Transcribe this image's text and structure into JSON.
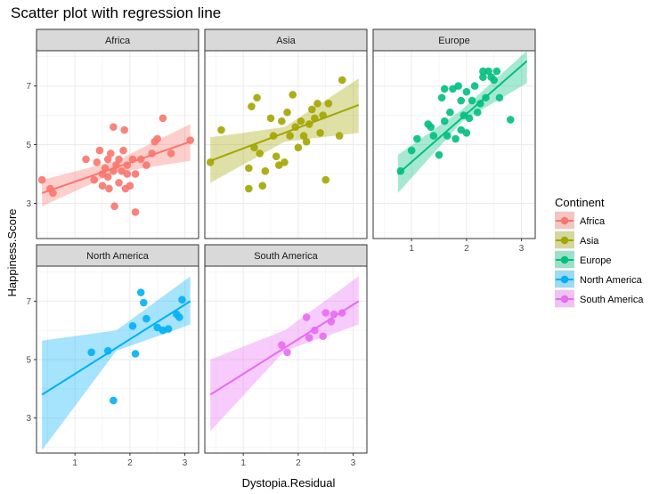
{
  "chart_data": {
    "type": "scatter",
    "title": "Scatter plot with regression line",
    "xlabel": "Dystopia.Residual",
    "ylabel": "Happiness.Score",
    "xlim": [
      0.3,
      3.25
    ],
    "ylim": [
      1.8,
      8.2
    ],
    "x_ticks": [
      1,
      2,
      3
    ],
    "y_ticks": [
      3,
      5,
      7
    ],
    "grid": true,
    "legend": {
      "title": "Continent",
      "position": "right"
    },
    "panels": [
      {
        "name": "Africa",
        "color": "#F8766D",
        "regression": {
          "x": [
            0.4,
            3.1
          ],
          "y": [
            3.35,
            5.1
          ],
          "ci_low_left": 2.9,
          "ci_high_left": 3.8,
          "ci_low_mid": 4.05,
          "ci_high_mid": 4.45,
          "ci_low_right": 4.45,
          "ci_high_right": 5.7
        },
        "points": [
          [
            0.4,
            3.8
          ],
          [
            0.55,
            3.5
          ],
          [
            0.6,
            3.35
          ],
          [
            1.2,
            4.5
          ],
          [
            1.35,
            3.8
          ],
          [
            1.4,
            4.4
          ],
          [
            1.45,
            4.8
          ],
          [
            1.5,
            3.6
          ],
          [
            1.5,
            4.0
          ],
          [
            1.55,
            4.2
          ],
          [
            1.6,
            3.9
          ],
          [
            1.6,
            4.5
          ],
          [
            1.62,
            3.5
          ],
          [
            1.65,
            4.7
          ],
          [
            1.7,
            5.6
          ],
          [
            1.7,
            4.1
          ],
          [
            1.72,
            2.9
          ],
          [
            1.75,
            4.3
          ],
          [
            1.8,
            3.7
          ],
          [
            1.8,
            4.5
          ],
          [
            1.85,
            4.1
          ],
          [
            1.88,
            4.8
          ],
          [
            1.9,
            5.5
          ],
          [
            1.92,
            3.5
          ],
          [
            1.95,
            4.0
          ],
          [
            1.95,
            4.3
          ],
          [
            2.0,
            3.6
          ],
          [
            2.05,
            4.5
          ],
          [
            2.1,
            2.7
          ],
          [
            2.1,
            4.0
          ],
          [
            2.2,
            4.5
          ],
          [
            2.3,
            4.3
          ],
          [
            2.4,
            4.7
          ],
          [
            2.45,
            5.1
          ],
          [
            2.5,
            5.2
          ],
          [
            2.6,
            5.9
          ],
          [
            2.75,
            4.7
          ],
          [
            3.1,
            5.15
          ]
        ]
      },
      {
        "name": "Asia",
        "color": "#A3A500",
        "regression": {
          "x": [
            0.4,
            3.1
          ],
          "y": [
            4.45,
            6.35
          ],
          "ci_low_left": 3.7,
          "ci_high_left": 5.25,
          "ci_low_mid": 5.1,
          "ci_high_mid": 5.6,
          "ci_low_right": 5.4,
          "ci_high_right": 7.25
        },
        "points": [
          [
            0.4,
            4.4
          ],
          [
            0.6,
            5.5
          ],
          [
            1.1,
            4.2
          ],
          [
            1.1,
            3.5
          ],
          [
            1.15,
            6.3
          ],
          [
            1.2,
            4.9
          ],
          [
            1.25,
            6.6
          ],
          [
            1.3,
            4.7
          ],
          [
            1.35,
            3.6
          ],
          [
            1.4,
            4.1
          ],
          [
            1.5,
            5.9
          ],
          [
            1.55,
            5.3
          ],
          [
            1.6,
            4.6
          ],
          [
            1.65,
            4.3
          ],
          [
            1.7,
            5.8
          ],
          [
            1.75,
            4.4
          ],
          [
            1.8,
            6.1
          ],
          [
            1.85,
            5.3
          ],
          [
            1.9,
            6.7
          ],
          [
            1.95,
            5.6
          ],
          [
            2.0,
            4.9
          ],
          [
            2.05,
            5.8
          ],
          [
            2.1,
            5.3
          ],
          [
            2.15,
            5.1
          ],
          [
            2.2,
            5.7
          ],
          [
            2.25,
            6.2
          ],
          [
            2.3,
            5.9
          ],
          [
            2.35,
            6.4
          ],
          [
            2.4,
            5.4
          ],
          [
            2.45,
            6.0
          ],
          [
            2.5,
            3.8
          ],
          [
            2.55,
            6.4
          ],
          [
            2.75,
            5.3
          ],
          [
            2.8,
            7.2
          ]
        ]
      },
      {
        "name": "Europe",
        "color": "#00BF7D",
        "regression": {
          "x": [
            0.75,
            3.1
          ],
          "y": [
            4.0,
            7.85
          ],
          "ci_low_left": 3.35,
          "ci_high_left": 4.65,
          "ci_low_mid": 5.8,
          "ci_high_mid": 6.2,
          "ci_low_right": 7.1,
          "ci_high_right": 8.5
        },
        "points": [
          [
            0.8,
            4.1
          ],
          [
            1.0,
            4.8
          ],
          [
            1.1,
            5.2
          ],
          [
            1.3,
            5.7
          ],
          [
            1.35,
            5.6
          ],
          [
            1.4,
            5.3
          ],
          [
            1.5,
            4.65
          ],
          [
            1.55,
            6.6
          ],
          [
            1.6,
            5.8
          ],
          [
            1.6,
            6.9
          ],
          [
            1.65,
            5.3
          ],
          [
            1.7,
            6.1
          ],
          [
            1.75,
            6.9
          ],
          [
            1.8,
            5.2
          ],
          [
            1.85,
            7.0
          ],
          [
            1.9,
            5.5
          ],
          [
            1.9,
            6.5
          ],
          [
            1.95,
            6.0
          ],
          [
            2.0,
            5.4
          ],
          [
            2.0,
            6.8
          ],
          [
            2.05,
            5.9
          ],
          [
            2.1,
            6.5
          ],
          [
            2.15,
            7.0
          ],
          [
            2.2,
            6.1
          ],
          [
            2.25,
            6.4
          ],
          [
            2.3,
            7.3
          ],
          [
            2.3,
            7.5
          ],
          [
            2.35,
            6.6
          ],
          [
            2.4,
            7.5
          ],
          [
            2.45,
            7.3
          ],
          [
            2.5,
            7.2
          ],
          [
            2.55,
            7.5
          ],
          [
            2.6,
            6.6
          ],
          [
            2.8,
            5.85
          ]
        ]
      },
      {
        "name": "North America",
        "color": "#00B0F6",
        "regression": {
          "x": [
            0.4,
            3.1
          ],
          "y": [
            3.8,
            7.0
          ],
          "ci_low_left": 1.9,
          "ci_high_left": 5.65,
          "ci_low_mid": 5.3,
          "ci_high_mid": 6.0,
          "ci_low_right": 6.2,
          "ci_high_right": 7.85
        },
        "points": [
          [
            1.3,
            5.25
          ],
          [
            1.6,
            5.3
          ],
          [
            1.7,
            3.6
          ],
          [
            2.05,
            6.15
          ],
          [
            2.1,
            5.2
          ],
          [
            2.2,
            7.3
          ],
          [
            2.25,
            6.95
          ],
          [
            2.3,
            6.4
          ],
          [
            2.5,
            6.1
          ],
          [
            2.6,
            6.0
          ],
          [
            2.7,
            6.05
          ],
          [
            2.85,
            6.55
          ],
          [
            2.9,
            6.45
          ],
          [
            2.95,
            7.05
          ]
        ]
      },
      {
        "name": "South America",
        "color": "#E76BF3",
        "regression": {
          "x": [
            0.4,
            3.1
          ],
          "y": [
            3.8,
            7.0
          ],
          "ci_low_left": 2.55,
          "ci_high_left": 5.0,
          "ci_low_mid": 5.3,
          "ci_high_mid": 6.0,
          "ci_low_right": 6.2,
          "ci_high_right": 7.85
        },
        "points": [
          [
            1.7,
            5.5
          ],
          [
            1.8,
            5.25
          ],
          [
            2.15,
            6.45
          ],
          [
            2.2,
            5.75
          ],
          [
            2.3,
            6.0
          ],
          [
            2.45,
            5.8
          ],
          [
            2.5,
            6.6
          ],
          [
            2.6,
            6.3
          ],
          [
            2.65,
            6.55
          ],
          [
            2.8,
            6.6
          ]
        ]
      }
    ]
  }
}
